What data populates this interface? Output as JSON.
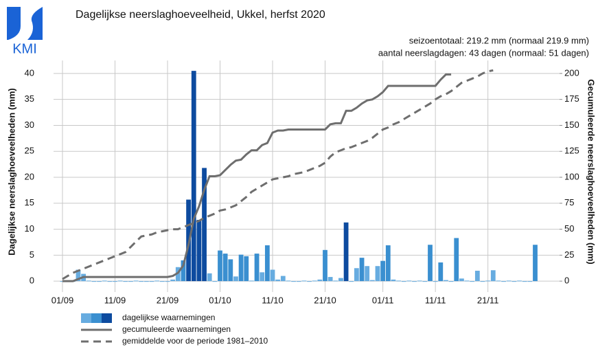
{
  "logo": "KMI",
  "chart_data": {
    "type": "bar_line",
    "title": "Dagelijkse neerslaghoeveelheid, Ukkel, herfst 2020",
    "annotations": [
      "seizoentotaal: 219.2 mm (normaal 219.9 mm)",
      "aantal neerslagdagen: 43 dagen (normaal: 51 dagen)"
    ],
    "ylabel": "Dagelijkse neerslaghoeveelheden (mm)",
    "y2label": "Gecumuleerde neerslaghoeveelheden (mm)",
    "categories": [
      "01/09",
      null,
      null,
      null,
      null,
      null,
      null,
      null,
      null,
      null,
      "11/09",
      null,
      null,
      null,
      null,
      null,
      null,
      null,
      null,
      null,
      "21/09",
      null,
      null,
      null,
      null,
      null,
      null,
      null,
      null,
      null,
      "01/10",
      null,
      null,
      null,
      null,
      null,
      null,
      null,
      null,
      null,
      "11/10",
      null,
      null,
      null,
      null,
      null,
      null,
      null,
      null,
      null,
      "21/10",
      null,
      null,
      null,
      null,
      null,
      null,
      null,
      null,
      null,
      null,
      "01/11",
      null,
      null,
      null,
      null,
      null,
      null,
      null,
      null,
      null,
      "11/11",
      null,
      null,
      null,
      null,
      null,
      null,
      null,
      null,
      null,
      "21/11",
      null,
      null,
      null,
      null,
      null,
      null,
      null,
      null,
      null
    ],
    "ylim": [
      -2.1,
      42.5
    ],
    "yticks": [
      0,
      5,
      10,
      15,
      20,
      25,
      30,
      35,
      40
    ],
    "y2lim": [
      -10.5,
      212.5
    ],
    "y2ticks": [
      0,
      25,
      50,
      75,
      100,
      125,
      150,
      175,
      200
    ],
    "grid": true,
    "series": [
      {
        "name": "dagelijkse waarnemingen",
        "type": "bar",
        "shades": [
          "#67ace0",
          "#3a8fd0",
          "#0d4b9f"
        ],
        "values": [
          0,
          0,
          0,
          2.2,
          1.4,
          0.1,
          0,
          0,
          0.1,
          0,
          0,
          0.1,
          0,
          0,
          0.1,
          0,
          0,
          0,
          0.1,
          0,
          0,
          0.3,
          2.7,
          4.0,
          15.7,
          40.5,
          11.8,
          21.8,
          1.5,
          0,
          5.9,
          5.3,
          4.2,
          0.9,
          5.1,
          4.8,
          0.1,
          5.3,
          1.7,
          6.9,
          2.2,
          0.3,
          1.0,
          0.1,
          0,
          0,
          0.1,
          0,
          0.1,
          0.3,
          6.0,
          0.8,
          0.1,
          0.6,
          11.3,
          0,
          2.5,
          4.5,
          2.9,
          0.2,
          2.9,
          3.9,
          6.9,
          0.3,
          0.1,
          0,
          0.1,
          0,
          0.1,
          0,
          7.0,
          0,
          3.6,
          0.2,
          0,
          8.3,
          0.5,
          0.1,
          0,
          2.0,
          0,
          0.1,
          2.1,
          0.1,
          0,
          0.1,
          0,
          0.1,
          0,
          0,
          7.0
        ],
        "colors": [
          "#67ace0",
          "#67ace0",
          "#67ace0",
          "#67ace0",
          "#67ace0",
          "#67ace0",
          "#67ace0",
          "#67ace0",
          "#67ace0",
          "#67ace0",
          "#67ace0",
          "#67ace0",
          "#67ace0",
          "#67ace0",
          "#67ace0",
          "#67ace0",
          "#67ace0",
          "#67ace0",
          "#67ace0",
          "#67ace0",
          "#67ace0",
          "#67ace0",
          "#67ace0",
          "#3a8fd0",
          "#0d4b9f",
          "#0d4b9f",
          "#0d4b9f",
          "#0d4b9f",
          "#67ace0",
          "#67ace0",
          "#3a8fd0",
          "#3a8fd0",
          "#3a8fd0",
          "#67ace0",
          "#3a8fd0",
          "#3a8fd0",
          "#67ace0",
          "#3a8fd0",
          "#67ace0",
          "#3a8fd0",
          "#67ace0",
          "#67ace0",
          "#67ace0",
          "#67ace0",
          "#67ace0",
          "#67ace0",
          "#67ace0",
          "#67ace0",
          "#67ace0",
          "#67ace0",
          "#3a8fd0",
          "#67ace0",
          "#67ace0",
          "#67ace0",
          "#0d4b9f",
          "#67ace0",
          "#67ace0",
          "#3a8fd0",
          "#67ace0",
          "#67ace0",
          "#67ace0",
          "#3a8fd0",
          "#3a8fd0",
          "#67ace0",
          "#67ace0",
          "#67ace0",
          "#67ace0",
          "#67ace0",
          "#67ace0",
          "#67ace0",
          "#3a8fd0",
          "#67ace0",
          "#3a8fd0",
          "#67ace0",
          "#67ace0",
          "#3a8fd0",
          "#67ace0",
          "#67ace0",
          "#67ace0",
          "#67ace0",
          "#67ace0",
          "#67ace0",
          "#67ace0",
          "#67ace0",
          "#67ace0",
          "#67ace0",
          "#67ace0",
          "#67ace0",
          "#67ace0",
          "#67ace0",
          "#3a8fd0"
        ]
      },
      {
        "name": "gecumuleerde waarnemingen",
        "type": "line",
        "axis": "y2",
        "color": "#6e6e6e",
        "dashed": false,
        "values": [
          0,
          0,
          0,
          2,
          4,
          4,
          4,
          4,
          4,
          4,
          4,
          4,
          4,
          4,
          4,
          4,
          4,
          4,
          4,
          4,
          4,
          5,
          8,
          15,
          35,
          60,
          72,
          88,
          101,
          101,
          102,
          107,
          112,
          116,
          117,
          122,
          126,
          126,
          131,
          133,
          143,
          145,
          145,
          146,
          146,
          146,
          146,
          146,
          146,
          146,
          146,
          151,
          152,
          152,
          164,
          164,
          167,
          171,
          174,
          175,
          178,
          182,
          188,
          188,
          188,
          188,
          188,
          188,
          188,
          188,
          188,
          188,
          194,
          199,
          199,
          null,
          null,
          null,
          null,
          null,
          null,
          null,
          null,
          null,
          null,
          null,
          null,
          null,
          null,
          null,
          null
        ]
      },
      {
        "name": "gemiddelde voor de periode 1981–2010",
        "type": "line",
        "axis": "y2",
        "color": "#6e6e6e",
        "dashed": true,
        "values": [
          2,
          5,
          8,
          10,
          12,
          14,
          16,
          18,
          20,
          22,
          24,
          26,
          28,
          33,
          38,
          43,
          44,
          45,
          47,
          48,
          49,
          50,
          50,
          52,
          54,
          56,
          58,
          61,
          63,
          65,
          68,
          69,
          71,
          73,
          77,
          81,
          86,
          89,
          92,
          95,
          98,
          99,
          100,
          101,
          103,
          104,
          105,
          107,
          109,
          111,
          114,
          120,
          124,
          126,
          128,
          129,
          131,
          133,
          135,
          138,
          142,
          146,
          148,
          151,
          153,
          156,
          159,
          162,
          165,
          168,
          171,
          175,
          178,
          180,
          183,
          187,
          191,
          193,
          195,
          197,
          200,
          202,
          203,
          null,
          null,
          null,
          null,
          null,
          null,
          null,
          null
        ]
      }
    ]
  }
}
